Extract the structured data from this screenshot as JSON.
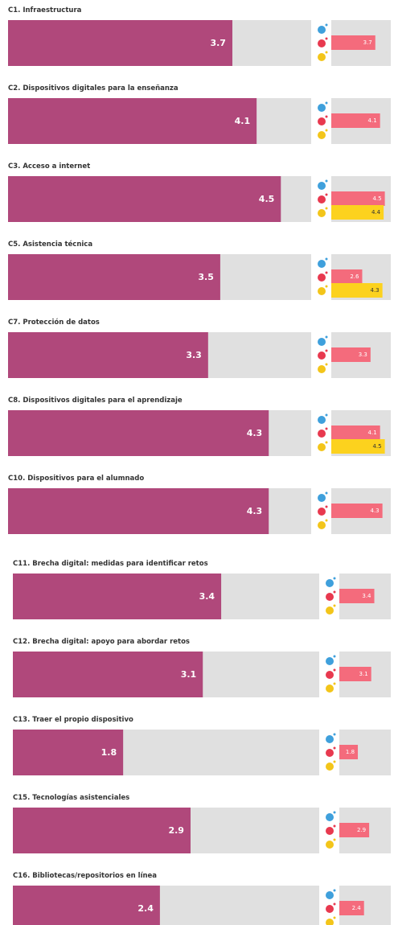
{
  "chart_data": [
    {
      "type": "bar",
      "title": "C1. Infraestructura",
      "xlim": [
        0,
        5
      ],
      "values": [
        3.7
      ],
      "color": "#b0487b",
      "series": [
        {
          "color": "#f46b7c",
          "values": [
            3.7
          ]
        },
        {
          "color": "#fcd21e",
          "values": [
            null
          ]
        }
      ]
    },
    {
      "type": "bar",
      "title": "C2. Dispositivos digitales para la enseñanza",
      "xlim": [
        0,
        5
      ],
      "values": [
        4.1
      ],
      "color": "#b0487b",
      "series": [
        {
          "color": "#f46b7c",
          "values": [
            4.1
          ]
        },
        {
          "color": "#fcd21e",
          "values": [
            null
          ]
        }
      ]
    },
    {
      "type": "bar",
      "title": "C3. Acceso a internet",
      "xlim": [
        0,
        5
      ],
      "values": [
        4.5
      ],
      "color": "#b0487b",
      "series": [
        {
          "color": "#f46b7c",
          "values": [
            4.5
          ]
        },
        {
          "color": "#fcd21e",
          "values": [
            4.4
          ]
        }
      ]
    },
    {
      "type": "bar",
      "title": "C5. Asistencia técnica",
      "xlim": [
        0,
        5
      ],
      "values": [
        3.5
      ],
      "color": "#b0487b",
      "series": [
        {
          "color": "#f46b7c",
          "values": [
            2.6
          ]
        },
        {
          "color": "#fcd21e",
          "values": [
            4.3
          ]
        }
      ]
    },
    {
      "type": "bar",
      "title": "C7. Protección de datos",
      "xlim": [
        0,
        5
      ],
      "values": [
        3.3
      ],
      "color": "#b0487b",
      "series": [
        {
          "color": "#f46b7c",
          "values": [
            3.3
          ]
        },
        {
          "color": "#fcd21e",
          "values": [
            null
          ]
        }
      ]
    },
    {
      "type": "bar",
      "title": "C8. Dispositivos digitales para el aprendizaje",
      "xlim": [
        0,
        5
      ],
      "values": [
        4.3
      ],
      "color": "#b0487b",
      "series": [
        {
          "color": "#f46b7c",
          "values": [
            4.1
          ]
        },
        {
          "color": "#fcd21e",
          "values": [
            4.5
          ]
        }
      ]
    },
    {
      "type": "bar",
      "title": "C10. Dispositivos para el alumnado",
      "xlim": [
        0,
        5
      ],
      "values": [
        4.3
      ],
      "color": "#b0487b",
      "series": [
        {
          "color": "#f46b7c",
          "values": [
            4.3
          ]
        },
        {
          "color": "#fcd21e",
          "values": [
            null
          ]
        }
      ]
    },
    {
      "type": "bar",
      "title": "C11. Brecha digital: medidas para identificar retos",
      "xlim": [
        0,
        5
      ],
      "values": [
        3.4
      ],
      "color": "#b0487b",
      "series": [
        {
          "color": "#f46b7c",
          "values": [
            3.4
          ]
        },
        {
          "color": "#fcd21e",
          "values": [
            null
          ]
        }
      ]
    },
    {
      "type": "bar",
      "title": "C12. Brecha digital: apoyo para abordar retos",
      "xlim": [
        0,
        5
      ],
      "values": [
        3.1
      ],
      "color": "#b0487b",
      "series": [
        {
          "color": "#f46b7c",
          "values": [
            3.1
          ]
        },
        {
          "color": "#fcd21e",
          "values": [
            null
          ]
        }
      ]
    },
    {
      "type": "bar",
      "title": "C13. Traer el propio dispositivo",
      "xlim": [
        0,
        5
      ],
      "values": [
        1.8
      ],
      "color": "#b0487b",
      "series": [
        {
          "color": "#f46b7c",
          "values": [
            1.8
          ]
        },
        {
          "color": "#fcd21e",
          "values": [
            null
          ]
        }
      ]
    },
    {
      "type": "bar",
      "title": "C15. Tecnologías asistenciales",
      "xlim": [
        0,
        5
      ],
      "values": [
        2.9
      ],
      "color": "#b0487b",
      "series": [
        {
          "color": "#f46b7c",
          "values": [
            2.9
          ]
        },
        {
          "color": "#fcd21e",
          "values": [
            null
          ]
        }
      ]
    },
    {
      "type": "bar",
      "title": "C16. Bibliotecas/repositorios en línea",
      "xlim": [
        0,
        5
      ],
      "values": [
        2.4
      ],
      "color": "#b0487b",
      "series": [
        {
          "color": "#f46b7c",
          "values": [
            2.4
          ]
        },
        {
          "color": "#fcd21e",
          "values": [
            null
          ]
        }
      ]
    }
  ]
}
